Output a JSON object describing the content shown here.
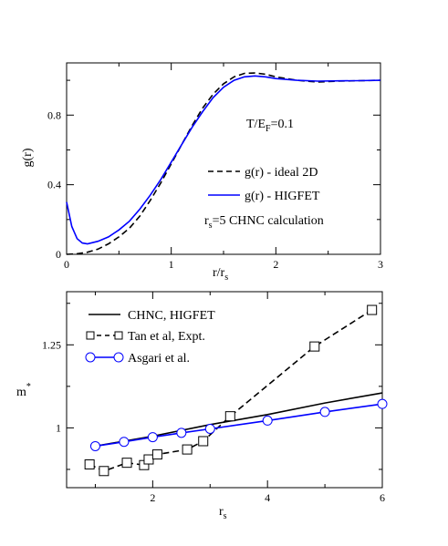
{
  "chart_data": [
    {
      "type": "line",
      "xlabel": "r/r",
      "xlabel_sub": "s",
      "ylabel": "g(r)",
      "xlim": [
        0,
        3
      ],
      "ylim": [
        0,
        1.1
      ],
      "xticks": [
        "0",
        "1",
        "2",
        "3"
      ],
      "yticks": [
        "0",
        "0.4",
        "0.8"
      ],
      "annotations": {
        "temp_main": "T/E",
        "temp_sub": "F",
        "temp_val": "=0.1",
        "rs_main": "r",
        "rs_sub": "s",
        "rs_val": "=5   CHNC calculation"
      },
      "legend_position": "right",
      "series": [
        {
          "name": "g(r) - ideal 2D",
          "color": "#000000",
          "dash": "dashed",
          "x": [
            0,
            0.1,
            0.2,
            0.3,
            0.4,
            0.5,
            0.6,
            0.7,
            0.8,
            0.9,
            1.0,
            1.1,
            1.2,
            1.3,
            1.4,
            1.5,
            1.6,
            1.7,
            1.8,
            1.9,
            2.0,
            2.2,
            2.4,
            2.6,
            2.8,
            3.0
          ],
          "y": [
            0.0,
            0.003,
            0.012,
            0.03,
            0.06,
            0.1,
            0.15,
            0.22,
            0.31,
            0.41,
            0.52,
            0.63,
            0.74,
            0.84,
            0.92,
            0.98,
            1.02,
            1.04,
            1.042,
            1.035,
            1.02,
            1.0,
            0.99,
            0.995,
            0.998,
            1.0
          ]
        },
        {
          "name": "g(r) - HIGFET",
          "color": "#0000ff",
          "dash": "solid",
          "x": [
            0,
            0.05,
            0.1,
            0.15,
            0.2,
            0.3,
            0.4,
            0.5,
            0.6,
            0.7,
            0.8,
            0.9,
            1.0,
            1.1,
            1.2,
            1.3,
            1.4,
            1.5,
            1.6,
            1.7,
            1.8,
            1.9,
            2.0,
            2.2,
            2.4,
            2.6,
            2.8,
            3.0
          ],
          "y": [
            0.3,
            0.16,
            0.09,
            0.065,
            0.06,
            0.075,
            0.1,
            0.14,
            0.19,
            0.26,
            0.34,
            0.43,
            0.53,
            0.63,
            0.73,
            0.82,
            0.9,
            0.96,
            1.0,
            1.02,
            1.025,
            1.02,
            1.01,
            1.0,
            0.995,
            0.997,
            0.998,
            1.0
          ]
        }
      ]
    },
    {
      "type": "line",
      "xlabel": "r",
      "xlabel_sub": "s",
      "ylabel": "m",
      "ylabel_sup": "*",
      "xlim": [
        0.5,
        6
      ],
      "ylim": [
        0.82,
        1.41
      ],
      "xticks": [
        "2",
        "4",
        "6"
      ],
      "yticks": [
        "1",
        "1.25"
      ],
      "legend_position": "top-left",
      "series": [
        {
          "name": "CHNC,  HIGFET",
          "color": "#000000",
          "dash": "solid",
          "marker": "none",
          "x": [
            1.0,
            2.0,
            3.0,
            4.0,
            5.0,
            6.0
          ],
          "y": [
            0.945,
            0.975,
            1.01,
            1.04,
            1.075,
            1.105
          ]
        },
        {
          "name": "Tan et al, Expt.",
          "color": "#000000",
          "dash": "dashed",
          "marker": "square",
          "x": [
            0.9,
            1.15,
            1.55,
            1.85,
            1.93,
            2.08,
            2.6,
            2.88,
            3.35,
            4.82,
            5.82
          ],
          "y": [
            0.89,
            0.87,
            0.895,
            0.888,
            0.905,
            0.92,
            0.935,
            0.96,
            1.035,
            1.245,
            1.355
          ]
        },
        {
          "name": "Asgari et al.",
          "color": "#0000ff",
          "dash": "solid",
          "marker": "circle",
          "x": [
            1.0,
            1.5,
            2.0,
            2.5,
            3.0,
            4.0,
            5.0,
            6.0
          ],
          "y": [
            0.945,
            0.958,
            0.972,
            0.985,
            0.997,
            1.022,
            1.048,
            1.072
          ]
        }
      ]
    }
  ]
}
